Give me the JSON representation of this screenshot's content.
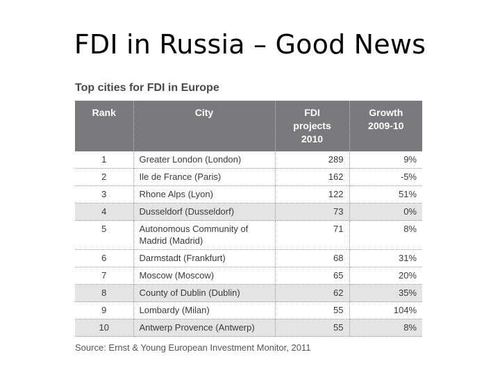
{
  "title": "FDI in Russia – Good News",
  "table_caption": "Top cities for FDI in Europe",
  "columns": {
    "rank": "Rank",
    "city": "City",
    "projects_l1": "FDI",
    "projects_l2": "projects",
    "projects_l3": "2010",
    "growth_l1": "Growth",
    "growth_l2": "2009-10"
  },
  "rows": [
    {
      "rank": "1",
      "city": "Greater London (London)",
      "projects": "289",
      "growth": "9%"
    },
    {
      "rank": "2",
      "city": "Ile de France (Paris)",
      "projects": "162",
      "growth": "-5%"
    },
    {
      "rank": "3",
      "city": "Rhone Alps (Lyon)",
      "projects": "122",
      "growth": "51%"
    },
    {
      "rank": "4",
      "city": "Dusseldorf (Dusseldorf)",
      "projects": "73",
      "growth": "0%"
    },
    {
      "rank": "5",
      "city": "Autonomous Community of Madrid (Madrid)",
      "projects": "71",
      "growth": "8%"
    },
    {
      "rank": "6",
      "city": "Darmstadt (Frankfurt)",
      "projects": "68",
      "growth": "31%"
    },
    {
      "rank": "7",
      "city": "Moscow (Moscow)",
      "projects": "65",
      "growth": "20%"
    },
    {
      "rank": "8",
      "city": "County of Dublin (Dublin)",
      "projects": "62",
      "growth": "35%"
    },
    {
      "rank": "9",
      "city": "Lombardy (Milan)",
      "projects": "55",
      "growth": "104%"
    },
    {
      "rank": "10",
      "city": "Antwerp Provence (Antwerp)",
      "projects": "55",
      "growth": "8%"
    }
  ],
  "source": "Source: Ernst & Young European Investment Monitor, 2011"
}
